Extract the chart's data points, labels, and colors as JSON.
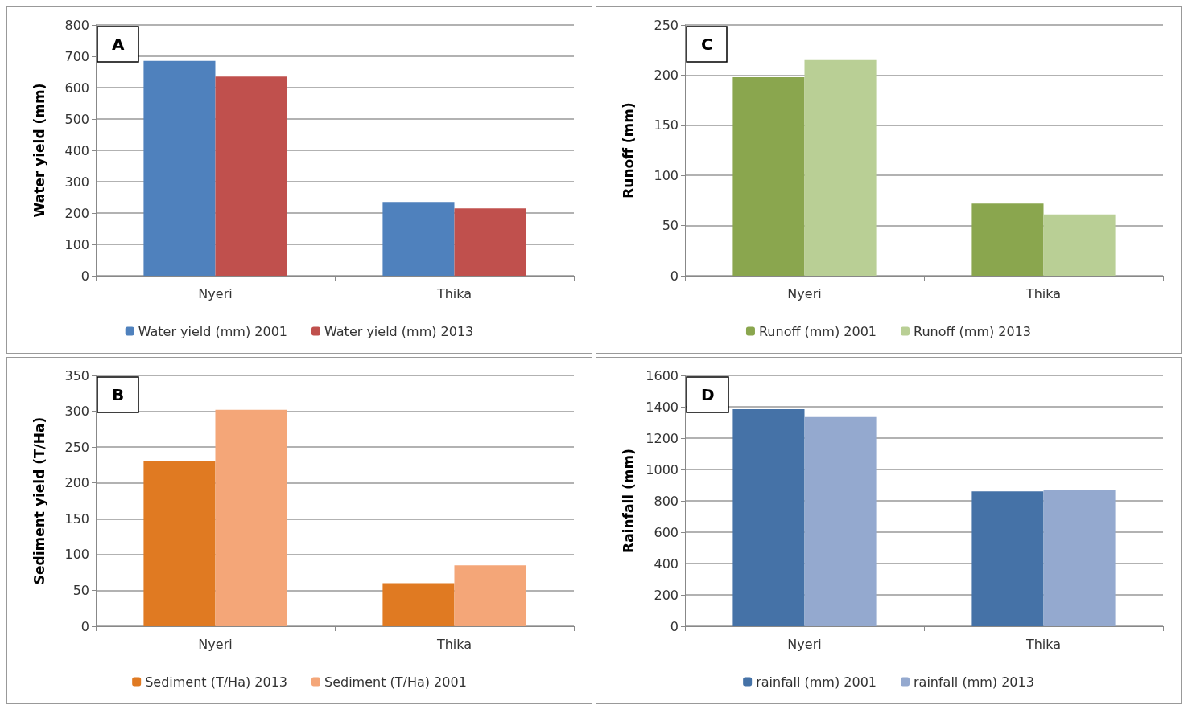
{
  "chart_data": [
    {
      "type": "bar",
      "title": "A",
      "ylabel": "Water yield (mm)",
      "categories": [
        "Nyeri",
        "Thika"
      ],
      "series": [
        {
          "name": "Water yield (mm) 2001",
          "color": "#4f81bd",
          "values": [
            685,
            235
          ]
        },
        {
          "name": "Water yield (mm) 2013",
          "color": "#c0504d",
          "values": [
            635,
            215
          ]
        }
      ],
      "ylim": [
        0,
        800
      ],
      "yticks": [
        0,
        100,
        200,
        300,
        400,
        500,
        600,
        700,
        800
      ],
      "grid": "y",
      "legend": "bottom"
    },
    {
      "type": "bar",
      "title": "C",
      "ylabel": "Runoff (mm)",
      "categories": [
        "Nyeri",
        "Thika"
      ],
      "series": [
        {
          "name": "Runoff (mm) 2001",
          "color": "#8aa64e",
          "values": [
            198,
            72
          ]
        },
        {
          "name": "Runoff (mm) 2013",
          "color": "#b9cf95",
          "values": [
            215,
            61
          ]
        }
      ],
      "ylim": [
        0,
        250
      ],
      "yticks": [
        0,
        50,
        100,
        150,
        200,
        250
      ],
      "grid": "y",
      "legend": "bottom"
    },
    {
      "type": "bar",
      "title": "B",
      "ylabel": "Sediment yield (T/Ha)",
      "categories": [
        "Nyeri",
        "Thika"
      ],
      "series": [
        {
          "name": "Sediment (T/Ha) 2013",
          "color": "#e07a22",
          "values": [
            231,
            60
          ]
        },
        {
          "name": "Sediment (T/Ha) 2001",
          "color": "#f4a678",
          "values": [
            302,
            85
          ]
        }
      ],
      "ylim": [
        0,
        350
      ],
      "yticks": [
        0,
        50,
        100,
        150,
        200,
        250,
        300,
        350
      ],
      "grid": "y",
      "legend": "bottom"
    },
    {
      "type": "bar",
      "title": "D",
      "ylabel": "Rainfall (mm)",
      "categories": [
        "Nyeri",
        "Thika"
      ],
      "series": [
        {
          "name": "rainfall (mm) 2001",
          "color": "#4572a7",
          "values": [
            1385,
            860
          ]
        },
        {
          "name": "rainfall (mm) 2013",
          "color": "#94a9cf",
          "values": [
            1335,
            870
          ]
        }
      ],
      "ylim": [
        0,
        1600
      ],
      "yticks": [
        0,
        200,
        400,
        600,
        800,
        1000,
        1200,
        1400,
        1600
      ],
      "grid": "y",
      "legend": "bottom"
    }
  ]
}
